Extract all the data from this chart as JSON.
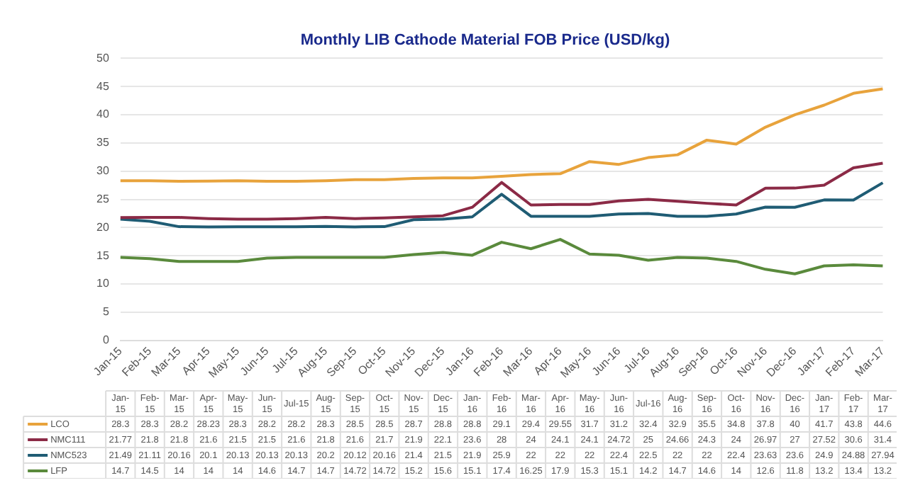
{
  "chart_data": {
    "type": "line",
    "title": "Monthly LIB Cathode Material FOB Price (USD/kg)",
    "categories": [
      "Jan-15",
      "Feb-15",
      "Mar-15",
      "Apr-15",
      "May-15",
      "Jun-15",
      "Jul-15",
      "Aug-15",
      "Sep-15",
      "Oct-15",
      "Nov-15",
      "Dec-15",
      "Jan-16",
      "Feb-16",
      "Mar-16",
      "Apr-16",
      "May-16",
      "Jun-16",
      "Jul-16",
      "Aug-16",
      "Sep-16",
      "Oct-16",
      "Nov-16",
      "Dec-16",
      "Jan-17",
      "Feb-17",
      "Mar-17"
    ],
    "series": [
      {
        "name": "LCO",
        "color": "#e8a33c",
        "values": [
          28.3,
          28.3,
          28.2,
          28.23,
          28.3,
          28.2,
          28.2,
          28.3,
          28.5,
          28.5,
          28.7,
          28.8,
          28.8,
          29.1,
          29.4,
          29.55,
          31.7,
          31.2,
          32.4,
          32.9,
          35.5,
          34.8,
          37.8,
          40,
          41.7,
          43.8,
          44.6
        ]
      },
      {
        "name": "NMC111",
        "color": "#8b2a46",
        "values": [
          21.77,
          21.8,
          21.8,
          21.6,
          21.5,
          21.5,
          21.6,
          21.8,
          21.6,
          21.7,
          21.9,
          22.1,
          23.6,
          28,
          24,
          24.1,
          24.1,
          24.72,
          25,
          24.66,
          24.3,
          24,
          26.97,
          27,
          27.52,
          30.6,
          31.4
        ]
      },
      {
        "name": "NMC523",
        "color": "#1f5c74",
        "values": [
          21.49,
          21.11,
          20.16,
          20.1,
          20.13,
          20.13,
          20.13,
          20.2,
          20.12,
          20.16,
          21.4,
          21.5,
          21.9,
          25.9,
          22,
          22,
          22,
          22.4,
          22.5,
          22,
          22,
          22.4,
          23.63,
          23.6,
          24.9,
          24.88,
          27.94
        ]
      },
      {
        "name": "LFP",
        "color": "#5a8a3c",
        "values": [
          14.7,
          14.5,
          14,
          14,
          14,
          14.6,
          14.7,
          14.7,
          14.72,
          14.72,
          15.2,
          15.6,
          15.1,
          17.4,
          16.25,
          17.9,
          15.3,
          15.1,
          14.2,
          14.7,
          14.6,
          14,
          12.6,
          11.8,
          13.2,
          13.4,
          13.2
        ]
      }
    ],
    "ylim": [
      0,
      50
    ],
    "yticks": [
      0,
      5,
      10,
      15,
      20,
      25,
      30,
      35,
      40,
      45,
      50
    ],
    "grid": "y",
    "legend": "bottom",
    "data_labels": true,
    "marker": "none",
    "line_style": "solid"
  }
}
